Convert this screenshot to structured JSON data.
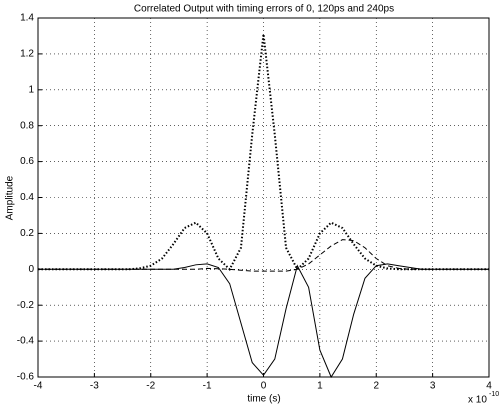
{
  "chart_data": {
    "type": "line",
    "title": "Correlated Output with timing errors of 0, 120ps and 240ps",
    "xlabel": "time (s)",
    "ylabel": "Amplitude",
    "x_scale_note": {
      "base": "x 10",
      "exponent": "-10"
    },
    "x": [
      -4,
      -3.8,
      -3.6,
      -3.4,
      -3.2,
      -3,
      -2.8,
      -2.6,
      -2.4,
      -2.2,
      -2,
      -1.8,
      -1.6,
      -1.4,
      -1.2,
      -1,
      -0.8,
      -0.6,
      -0.4,
      -0.2,
      0,
      0.2,
      0.4,
      0.6,
      0.8,
      1,
      1.2,
      1.4,
      1.6,
      1.8,
      2,
      2.2,
      2.4,
      2.6,
      2.8,
      3,
      3.2,
      3.4,
      3.6,
      3.8,
      4
    ],
    "series": [
      {
        "color": "#000000",
        "style": "dotted",
        "values": [
          0,
          0,
          0,
          0,
          0,
          0,
          0,
          0,
          0,
          0.005,
          0.02,
          0.06,
          0.14,
          0.23,
          0.26,
          0.2,
          0.06,
          0,
          0.12,
          0.75,
          1.31,
          0.75,
          0.12,
          0,
          0.06,
          0.2,
          0.26,
          0.23,
          0.14,
          0.06,
          0.02,
          0.005,
          0,
          0,
          0,
          0,
          0,
          0,
          0,
          0,
          0
        ]
      },
      {
        "color": "#000000",
        "style": "solid",
        "values": [
          0,
          0,
          0,
          0,
          0,
          0,
          0,
          0,
          0,
          0,
          0,
          0,
          0,
          0.01,
          0.025,
          0.03,
          0.01,
          -0.08,
          -0.3,
          -0.52,
          -0.59,
          -0.5,
          -0.22,
          0.02,
          -0.1,
          -0.45,
          -0.6,
          -0.5,
          -0.25,
          -0.05,
          0.02,
          0.03,
          0.02,
          0.01,
          0,
          0,
          0,
          0,
          0,
          0,
          0
        ]
      },
      {
        "color": "#000000",
        "style": "dashed",
        "values": [
          0,
          0,
          0,
          0,
          0,
          0,
          0,
          0,
          0,
          0,
          0,
          0,
          0,
          0,
          0,
          0.005,
          0.003,
          0,
          -0.005,
          -0.01,
          -0.01,
          -0.01,
          -0.01,
          0,
          0.03,
          0.08,
          0.13,
          0.165,
          0.16,
          0.12,
          0.06,
          0.02,
          0.005,
          0,
          0,
          0,
          0,
          0,
          0,
          0,
          0
        ]
      }
    ],
    "xlim": [
      -4,
      4
    ],
    "xticks": [
      -4,
      -3,
      -2,
      -1,
      0,
      1,
      2,
      3,
      4
    ],
    "ylim": [
      -0.6,
      1.4
    ],
    "yticks": [
      -0.6,
      -0.4,
      -0.2,
      0,
      0.2,
      0.4,
      0.6,
      0.8,
      1,
      1.2,
      1.4
    ],
    "grid": true
  }
}
